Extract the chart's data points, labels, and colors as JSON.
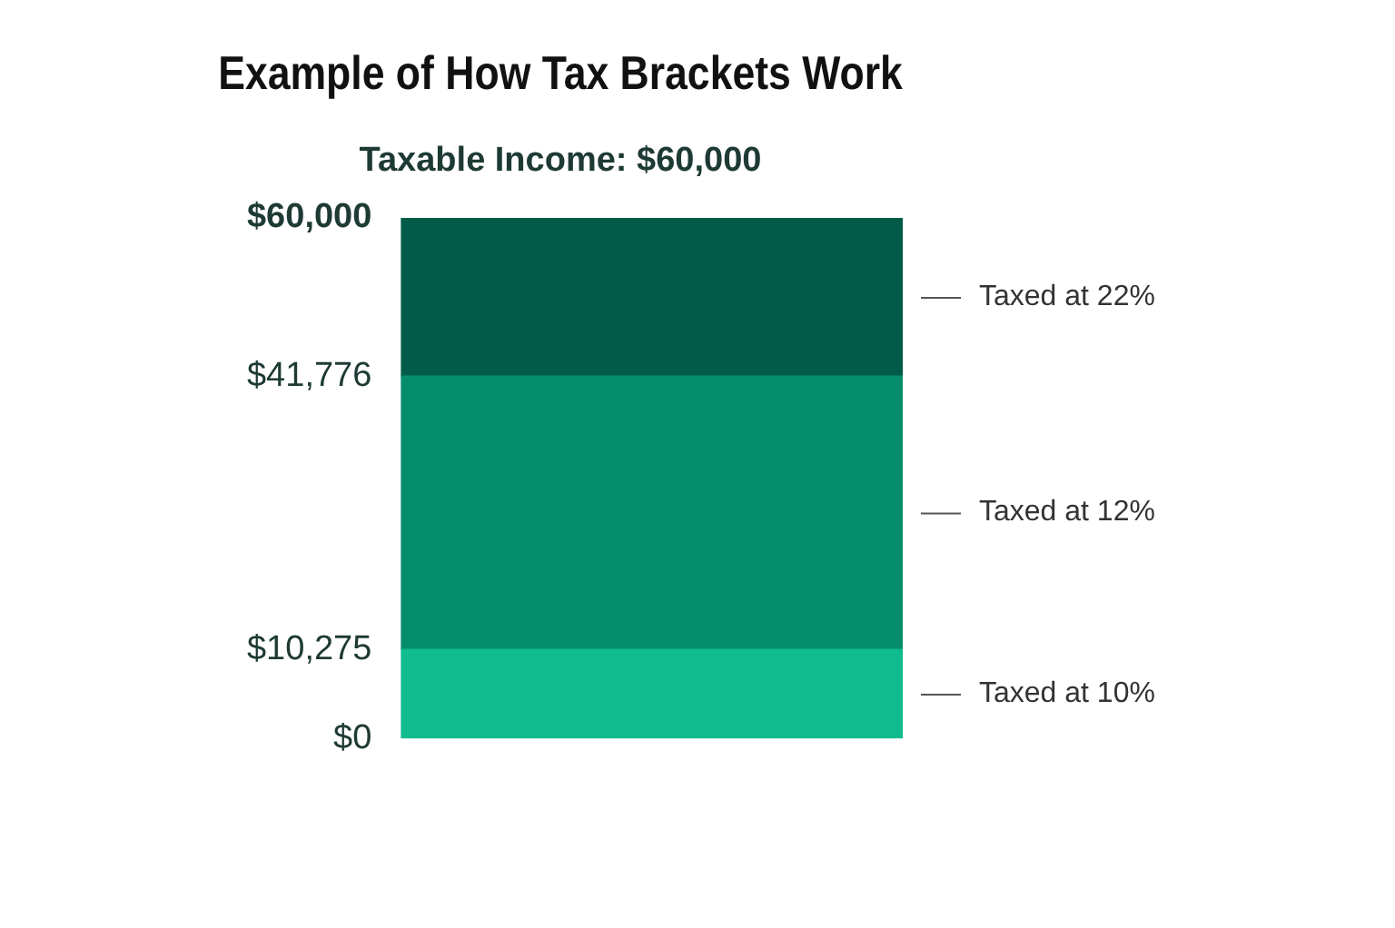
{
  "chart_data": {
    "type": "bar",
    "title": "Example of How Tax Brackets Work",
    "subtitle": "Taxable Income: $60,000",
    "categories": [
      null
    ],
    "stacked": true,
    "legend": false,
    "grid": false,
    "series": [
      {
        "name": "Taxed at 10%",
        "color": "#10bb8e",
        "values": [
          10275
        ]
      },
      {
        "name": "Taxed at 12%",
        "color": "#058c6b",
        "values": [
          31501
        ]
      },
      {
        "name": "Taxed at 22%",
        "color": "#005c48",
        "values": [
          18224
        ]
      }
    ],
    "ylim": [
      0,
      60000
    ],
    "yticks": [
      {
        "value": 0,
        "label": "$0"
      },
      {
        "value": 10275,
        "label": "$10,275"
      },
      {
        "value": 41776,
        "label": "$41,776"
      },
      {
        "value": 60000,
        "label": "$60,000"
      }
    ]
  }
}
